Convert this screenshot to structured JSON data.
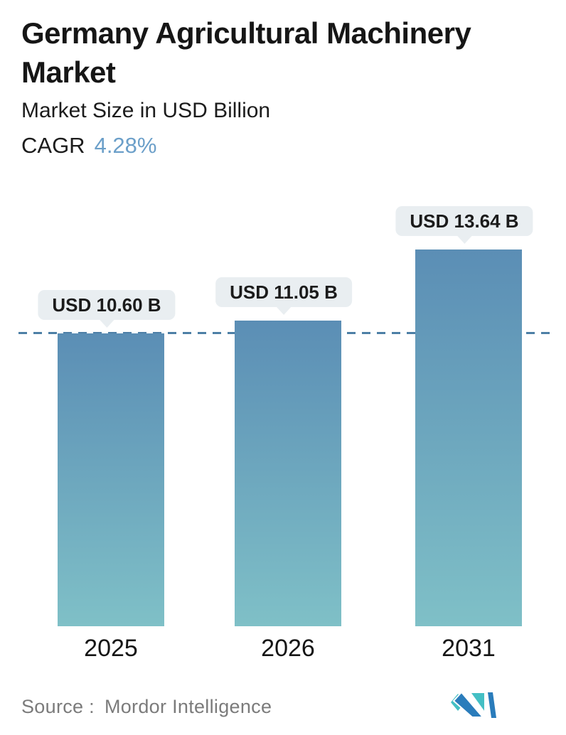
{
  "header": {
    "title": "Germany Agricultural Machinery Market",
    "subtitle": "Market Size in USD Billion",
    "cagr_label": "CAGR",
    "cagr_value": "4.28%"
  },
  "chart_data": {
    "type": "bar",
    "title": "Germany Agricultural Machinery Market",
    "ylabel": "Market Size in USD Billion",
    "cagr_percent": 4.28,
    "categories": [
      "2025",
      "2026",
      "2031"
    ],
    "values": [
      10.6,
      11.05,
      13.64
    ],
    "unit": "USD Billion",
    "value_labels": [
      "USD 10.60 B",
      "USD 11.05 B",
      "USD 13.64 B"
    ],
    "ylim": [
      0,
      14.2
    ],
    "grid": false,
    "legend": false,
    "reference_line": {
      "value": 10.6,
      "style": "dashed"
    },
    "colors": {
      "bar_gradient_top": "#5b8eb5",
      "bar_gradient_bottom": "#7fc0c7",
      "reference_line": "#4d7fa6",
      "callout_bg": "#e9eef1",
      "callout_text": "#1b1b1b",
      "cagr_accent": "#6b9fc9"
    }
  },
  "footer": {
    "source_label": "Source :",
    "source_value": "Mordor Intelligence",
    "logo": "mordor-intelligence-logo"
  }
}
